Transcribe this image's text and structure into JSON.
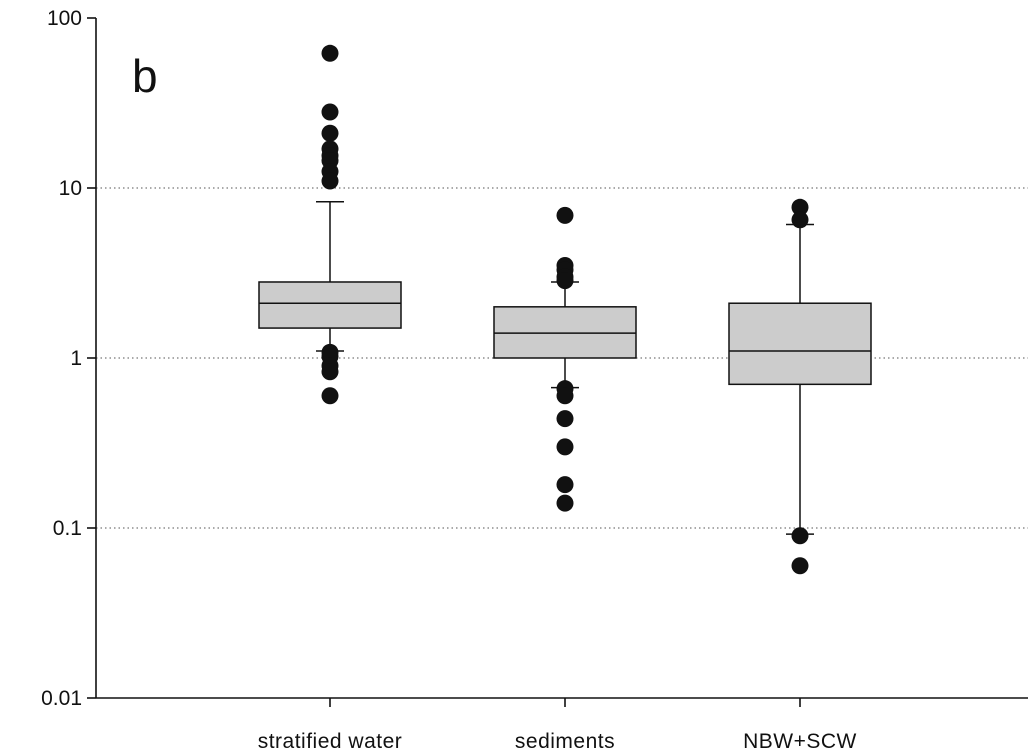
{
  "chart_data": {
    "type": "box",
    "panel_label": "b",
    "yscale": "log",
    "ylim": [
      0.01,
      100
    ],
    "ytick_labels": [
      "100",
      "10",
      "1",
      "0.1",
      "0.01"
    ],
    "ytick_values": [
      100,
      10,
      1,
      0.1,
      0.01
    ],
    "grid": "horizontal dotted at 10, 1, 0.1",
    "categories": [
      "stratified water",
      "sediments",
      "NBW+SCW"
    ],
    "box_color": "#cccccc",
    "outlier_color": "#111111",
    "boxes": [
      {
        "category": "stratified water",
        "whisker_low": 1.1,
        "q1": 1.5,
        "median": 2.1,
        "q3": 2.8,
        "whisker_high": 8.3,
        "outliers": [
          62,
          28,
          21,
          17,
          15.5,
          14.5,
          12.5,
          11,
          1.08,
          1.02,
          0.9,
          0.83,
          0.6
        ]
      },
      {
        "category": "sediments",
        "whisker_low": 0.67,
        "q1": 1.0,
        "median": 1.4,
        "q3": 2.0,
        "whisker_high": 2.8,
        "outliers": [
          6.9,
          3.5,
          3.3,
          3.0,
          2.85,
          0.66,
          0.6,
          0.44,
          0.3,
          0.18,
          0.14
        ]
      },
      {
        "category": "NBW+SCW",
        "whisker_low": 0.092,
        "q1": 0.7,
        "median": 1.1,
        "q3": 2.1,
        "whisker_high": 6.1,
        "outliers": [
          7.7,
          6.5,
          0.09,
          0.06
        ]
      }
    ]
  }
}
